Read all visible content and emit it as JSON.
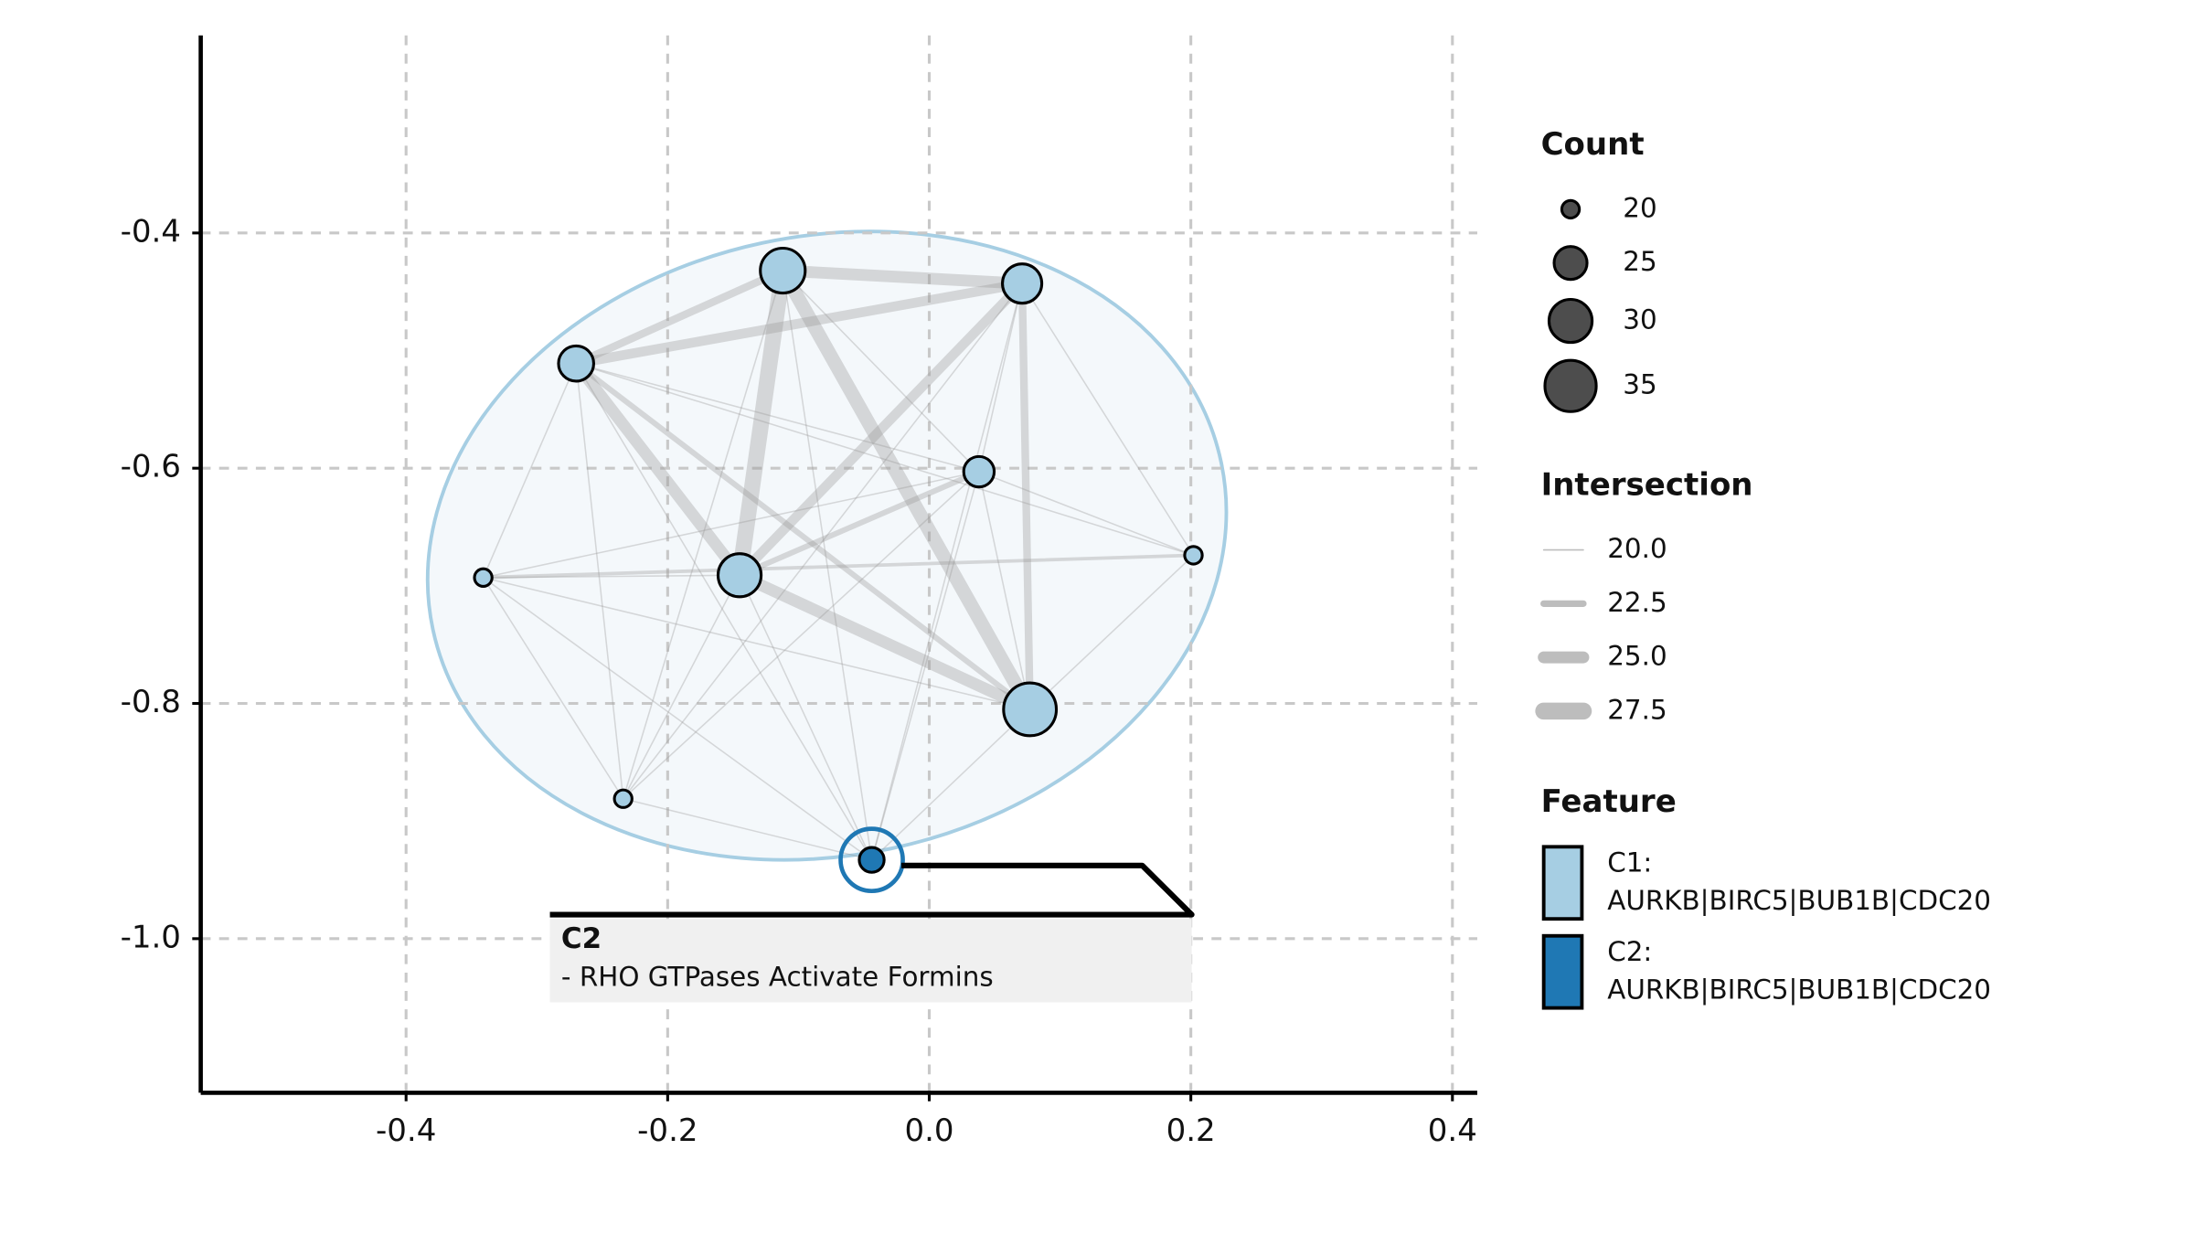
{
  "chart_data": {
    "type": "network",
    "xlim": [
      -0.557,
      0.419
    ],
    "ylim": [
      -1.131,
      -0.232
    ],
    "xticks": [
      -0.4,
      -0.2,
      {
        "value": 0,
        "label": "0.0"
      },
      0.2,
      0.4
    ],
    "yticks": [
      -0.4,
      -0.6,
      -0.8,
      {
        "value": -1,
        "label": "-1.0"
      }
    ],
    "grid": true,
    "clusters": [
      {
        "label": [
          "C1:",
          "AURKB|BIRC5|BUB1B|CDC20"
        ],
        "color": "#a6cee3"
      },
      {
        "label": [
          "C2:",
          "AURKB|BIRC5|BUB1B|CDC20"
        ],
        "color": "#1f78b4"
      }
    ],
    "nodes": [
      {
        "x": -0.112,
        "y": -0.432,
        "count": 31,
        "cluster": 0
      },
      {
        "x": 0.071,
        "y": -0.443,
        "count": 28,
        "cluster": 0
      },
      {
        "x": -0.27,
        "y": -0.511,
        "count": 26,
        "cluster": 0
      },
      {
        "x": 0.038,
        "y": -0.603,
        "count": 24,
        "cluster": 0
      },
      {
        "x": -0.341,
        "y": -0.693,
        "count": 20,
        "cluster": 0
      },
      {
        "x": -0.145,
        "y": -0.691,
        "count": 30,
        "cluster": 0
      },
      {
        "x": 0.202,
        "y": -0.674,
        "count": 20,
        "cluster": 0
      },
      {
        "x": 0.077,
        "y": -0.805,
        "count": 36,
        "cluster": 0
      },
      {
        "x": -0.234,
        "y": -0.881,
        "count": 20,
        "cluster": 0
      },
      {
        "x": -0.044,
        "y": -0.933,
        "count": 22,
        "cluster": 1
      }
    ],
    "edges": [
      {
        "source": 0,
        "target": 5,
        "weight": 27
      },
      {
        "source": 0,
        "target": 7,
        "weight": 26
      },
      {
        "source": 0,
        "target": 1,
        "weight": 25
      },
      {
        "source": 1,
        "target": 2,
        "weight": 24
      },
      {
        "source": 2,
        "target": 5,
        "weight": 25
      },
      {
        "source": 5,
        "target": 7,
        "weight": 25
      },
      {
        "source": 1,
        "target": 5,
        "weight": 24
      },
      {
        "source": 1,
        "target": 7,
        "weight": 23
      },
      {
        "source": 0,
        "target": 2,
        "weight": 23
      },
      {
        "source": 5,
        "target": 3,
        "weight": 22
      },
      {
        "source": 2,
        "target": 7,
        "weight": 22
      },
      {
        "source": 9,
        "target": 2,
        "weight": 20
      },
      {
        "source": 9,
        "target": 0,
        "weight": 20
      },
      {
        "source": 9,
        "target": 1,
        "weight": 20
      },
      {
        "source": 9,
        "target": 3,
        "weight": 20
      },
      {
        "source": 9,
        "target": 7,
        "weight": 20
      },
      {
        "source": 9,
        "target": 8,
        "weight": 20
      },
      {
        "source": 9,
        "target": 5,
        "weight": 20
      },
      {
        "source": 9,
        "target": 4,
        "weight": 20
      },
      {
        "source": 4,
        "target": 2,
        "weight": 20
      },
      {
        "source": 4,
        "target": 5,
        "weight": 20
      },
      {
        "source": 4,
        "target": 8,
        "weight": 20
      },
      {
        "source": 4,
        "target": 6,
        "weight": 21
      },
      {
        "source": 4,
        "target": 3,
        "weight": 20
      },
      {
        "source": 4,
        "target": 7,
        "weight": 20
      },
      {
        "source": 8,
        "target": 2,
        "weight": 20
      },
      {
        "source": 8,
        "target": 5,
        "weight": 20
      },
      {
        "source": 8,
        "target": 0,
        "weight": 20
      },
      {
        "source": 8,
        "target": 1,
        "weight": 20
      },
      {
        "source": 8,
        "target": 3,
        "weight": 20
      },
      {
        "source": 6,
        "target": 3,
        "weight": 20
      },
      {
        "source": 6,
        "target": 1,
        "weight": 20
      },
      {
        "source": 6,
        "target": 7,
        "weight": 20
      },
      {
        "source": 6,
        "target": 2,
        "weight": 20
      },
      {
        "source": 3,
        "target": 7,
        "weight": 20
      },
      {
        "source": 3,
        "target": 0,
        "weight": 20
      },
      {
        "source": 3,
        "target": 2,
        "weight": 20
      },
      {
        "source": 3,
        "target": 1,
        "weight": 20
      }
    ],
    "count_legend": {
      "title": "Count",
      "values": [
        20,
        25,
        30,
        35
      ]
    },
    "intersection_legend": {
      "title": "Intersection",
      "values": [
        {
          "value": 20,
          "label": "20.0"
        },
        {
          "value": 22.5,
          "label": "22.5"
        },
        {
          "value": 25,
          "label": "25.0"
        },
        {
          "value": 27.5,
          "label": "27.5"
        }
      ]
    },
    "feature_legend": {
      "title": "Feature"
    },
    "annotation": {
      "cluster": 1,
      "title": "C2",
      "text": "- RHO GTPases Activate Formins"
    }
  }
}
